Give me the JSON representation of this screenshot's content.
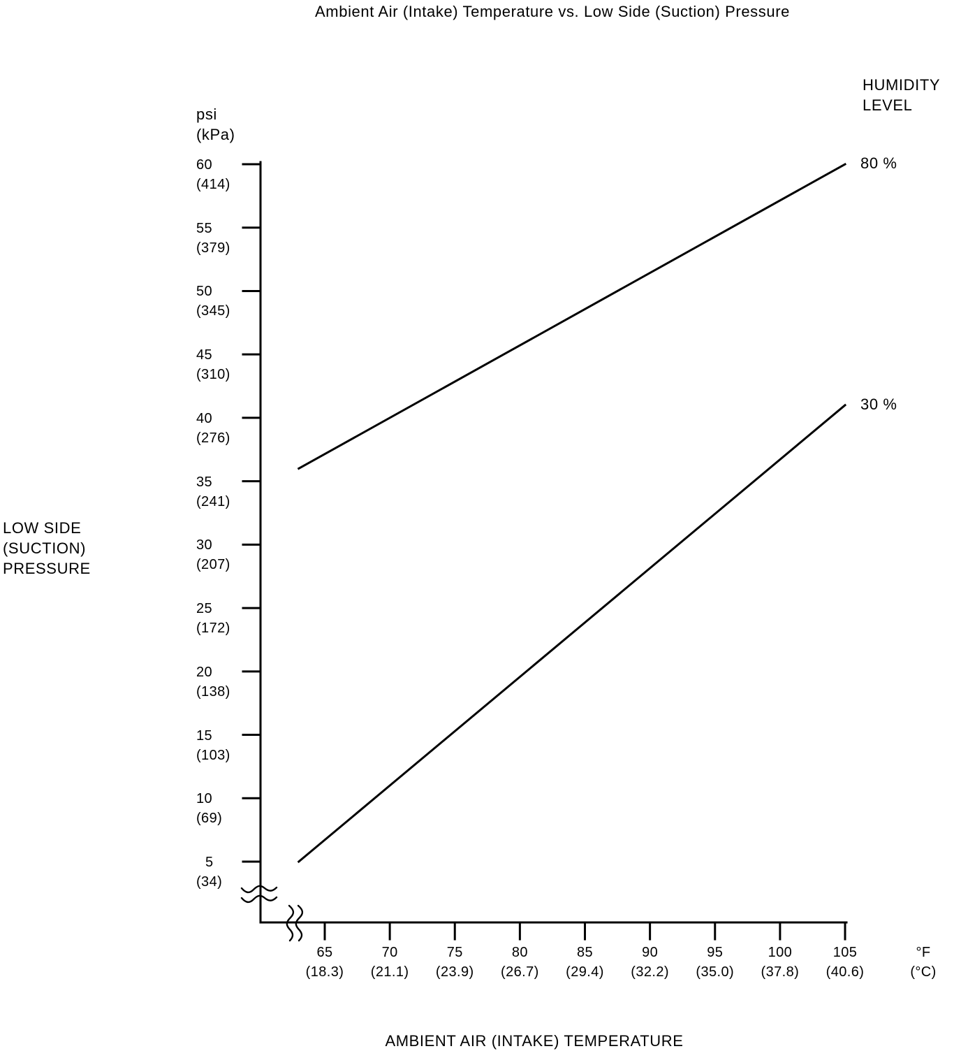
{
  "page": {
    "background": "#ffffff",
    "ink": "#000000"
  },
  "chart_data": {
    "type": "line",
    "title": "Ambient Air (Intake) Temperature vs. Low Side (Suction) Pressure",
    "grid": false,
    "line_color": "#000000",
    "x_axis": {
      "label": "AMBIENT AIR (INTAKE) TEMPERATURE",
      "unit_primary": "°F",
      "unit_secondary": "(°C)",
      "min_f": 65,
      "max_f": 105,
      "has_axis_break": true,
      "ticks": [
        {
          "f": 65,
          "c": "(18.3)"
        },
        {
          "f": 70,
          "c": "(21.1)"
        },
        {
          "f": 75,
          "c": "(23.9)"
        },
        {
          "f": 80,
          "c": "(26.7)"
        },
        {
          "f": 85,
          "c": "(29.4)"
        },
        {
          "f": 90,
          "c": "(32.2)"
        },
        {
          "f": 95,
          "c": "(35.0)"
        },
        {
          "f": 100,
          "c": "(37.8)"
        },
        {
          "f": 105,
          "c": "(40.6)"
        }
      ]
    },
    "y_axis": {
      "label": "LOW SIDE (SUCTION) PRESSURE",
      "unit_primary": "psi",
      "unit_secondary": "(kPa)",
      "min_psi": 5,
      "max_psi": 60,
      "has_axis_break": true,
      "ticks": [
        {
          "psi": 60,
          "kpa": "(414)"
        },
        {
          "psi": 55,
          "kpa": "(379)"
        },
        {
          "psi": 50,
          "kpa": "(345)"
        },
        {
          "psi": 45,
          "kpa": "(310)"
        },
        {
          "psi": 40,
          "kpa": "(276)"
        },
        {
          "psi": 35,
          "kpa": "(241)"
        },
        {
          "psi": 30,
          "kpa": "(207)"
        },
        {
          "psi": 25,
          "kpa": "(172)"
        },
        {
          "psi": 20,
          "kpa": "(138)"
        },
        {
          "psi": 15,
          "kpa": "(103)"
        },
        {
          "psi": 10,
          "kpa": "(69)"
        },
        {
          "psi": 5,
          "kpa": "(34)"
        }
      ]
    },
    "legend": {
      "title": "HUMIDITY LEVEL"
    },
    "series": [
      {
        "name": "80 %",
        "points_f_psi": [
          [
            63,
            36
          ],
          [
            105,
            60
          ]
        ]
      },
      {
        "name": "30 %",
        "points_f_psi": [
          [
            63,
            5
          ],
          [
            105,
            41
          ]
        ]
      }
    ]
  }
}
